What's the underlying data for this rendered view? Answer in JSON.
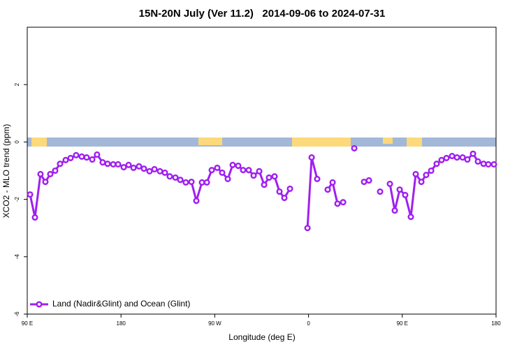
{
  "chart_data": {
    "type": "line",
    "title": "15N-20N July (Ver 11.2)   2014-09-06 to 2024-07-31",
    "xlabel": "Longitude (deg E)",
    "ylabel": "XCO2 - MLO trend (ppm)",
    "xlim": [
      90,
      540
    ],
    "ylim": [
      -6,
      4
    ],
    "xticks": [
      {
        "value": 90,
        "label": "90 E"
      },
      180,
      {
        "value": 270,
        "label": "90 W"
      },
      {
        "value": 360,
        "label": "0"
      },
      {
        "value": 450,
        "label": "90 E"
      },
      {
        "value": 540,
        "label": "180"
      }
    ],
    "yticks": [
      -6,
      -4,
      -2,
      0,
      2
    ],
    "legend": "lower left",
    "x": [
      92.7,
      97.4,
      102.7,
      107.4,
      112.1,
      116.8,
      121.5,
      126.9,
      131.6,
      136.9,
      142.3,
      147,
      152.4,
      157,
      162.4,
      167.1,
      172.5,
      177.2,
      182.6,
      187.3,
      192,
      197.3,
      202,
      207.4,
      212.1,
      217.4,
      222.1,
      226.8,
      232.2,
      236.9,
      242.2,
      247.6,
      252.3,
      257.7,
      262.4,
      267.1,
      272.4,
      277.1,
      282.5,
      287.2,
      292.5,
      297.2,
      302.6,
      307.3,
      312.7,
      317.4,
      322.1,
      327.4,
      332.1,
      336.8,
      342.2,
      350,
      359,
      363,
      368.3,
      373,
      378.4,
      383.1,
      387.8,
      393.2,
      398,
      403.9,
      408,
      413.3,
      418,
      423,
      428.7,
      433,
      438.1,
      442.8,
      447.5,
      452.8,
      458.2,
      462.9,
      468.3,
      472.9,
      477.7,
      483,
      487.7,
      492.4,
      497.8,
      502.5,
      507.9,
      512.5,
      517.9,
      522.6,
      528,
      532.6,
      538
    ],
    "series": [
      {
        "name": "Land (Nadir&Glint) and Ocean (Glint)",
        "color": "#a020f0",
        "values": [
          -1.83,
          -2.63,
          -1.12,
          -1.39,
          -1.12,
          -1.0,
          -0.76,
          -0.63,
          -0.56,
          -0.46,
          -0.51,
          -0.54,
          -0.61,
          -0.44,
          -0.71,
          -0.76,
          -0.78,
          -0.78,
          -0.88,
          -0.8,
          -0.9,
          -0.85,
          -0.93,
          -1.02,
          -0.95,
          -1.02,
          -1.07,
          -1.2,
          -1.24,
          -1.32,
          -1.41,
          -1.39,
          -2.05,
          -1.41,
          -1.41,
          -0.98,
          -0.9,
          -1.07,
          -1.29,
          -0.8,
          -0.83,
          -0.98,
          -0.98,
          -1.17,
          -1.02,
          -1.49,
          -1.24,
          -1.2,
          -1.73,
          -1.95,
          -1.63,
          null,
          -3.0,
          -0.54,
          -1.29,
          null,
          -1.66,
          -1.41,
          -2.15,
          -2.1,
          null,
          -0.22,
          null,
          -1.39,
          -1.34,
          null,
          -1.73,
          null,
          -1.46,
          -2.39,
          -1.66,
          -1.85,
          -2.61,
          -1.12,
          -1.39,
          -1.15,
          -1.0,
          -0.76,
          -0.63,
          -0.56,
          -0.49,
          -0.54,
          -0.54,
          -0.61,
          -0.41,
          -0.68,
          -0.76,
          -0.78,
          -0.78
        ]
      }
    ]
  }
}
